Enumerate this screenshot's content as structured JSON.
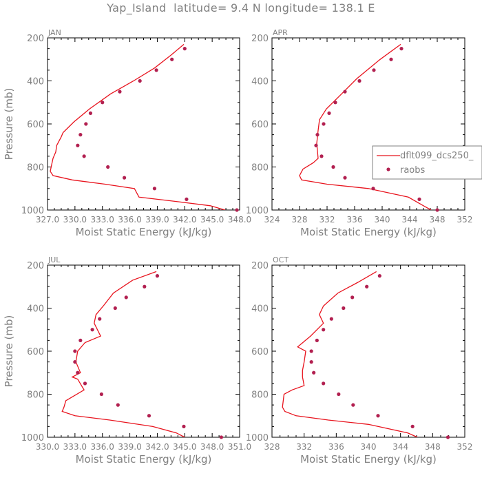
{
  "title": "Yap_Island  latitude= 9.4 N longitude= 138.1 E",
  "colors": {
    "model": "#e8141e",
    "obs": "#b22050",
    "text": "#808080",
    "axis": "#000000"
  },
  "legend": {
    "model_label": "dflt099_dcs250_",
    "obs_label": "raobs",
    "panel": "APR"
  },
  "chart_data": [
    {
      "type": "line",
      "panel": "JAN",
      "xlabel": "Moist Static Energy (kJ/kg)",
      "ylabel": "Pressure (mb)",
      "xlim": [
        327.0,
        348.0
      ],
      "ylim": [
        1000,
        200
      ],
      "yticks": [
        200,
        400,
        600,
        800,
        1000
      ],
      "xtick_labels": [
        "327.0",
        "330.0",
        "333.0",
        "336.0",
        "339.0",
        "342.0",
        "345.0",
        "348.0"
      ],
      "xtick_values": [
        327.0,
        330.0,
        333.0,
        336.0,
        339.0,
        342.0,
        345.0,
        348.0
      ],
      "series": [
        {
          "name": "dflt099_dcs250_",
          "kind": "line",
          "x": [
            341.9,
            340.5,
            338.7,
            336.4,
            333.9,
            331.6,
            329.9,
            328.7,
            328.5,
            328.0,
            327.9,
            327.6,
            327.4,
            327.3,
            327.6,
            329.7,
            333.3,
            336.5,
            337.0,
            341.0,
            344.8,
            346.4
          ],
          "y": [
            230,
            280,
            340,
            400,
            460,
            530,
            590,
            640,
            660,
            700,
            730,
            760,
            800,
            820,
            840,
            860,
            880,
            900,
            940,
            960,
            980,
            1000
          ]
        },
        {
          "name": "raobs",
          "kind": "scatter",
          "x": [
            342.0,
            340.6,
            338.9,
            337.1,
            334.9,
            333.0,
            331.7,
            331.2,
            330.6,
            330.3,
            331.0,
            333.6,
            335.4,
            338.7,
            342.2,
            347.7
          ],
          "y": [
            250,
            300,
            350,
            400,
            450,
            500,
            550,
            600,
            650,
            700,
            750,
            800,
            850,
            900,
            950,
            1000
          ]
        }
      ]
    },
    {
      "type": "line",
      "panel": "APR",
      "xlabel": "Moist Static Energy (kJ/kg)",
      "ylabel": "",
      "xlim": [
        324,
        352
      ],
      "ylim": [
        1000,
        200
      ],
      "yticks": [
        200,
        400,
        600,
        800,
        1000
      ],
      "xtick_labels": [
        "324",
        "328",
        "332",
        "336",
        "340",
        "344",
        "348",
        "352"
      ],
      "xtick_values": [
        324,
        328,
        332,
        336,
        340,
        344,
        348,
        352
      ],
      "series": [
        {
          "name": "dflt099_dcs250_",
          "kind": "line",
          "x": [
            342.7,
            339.7,
            336.3,
            333.8,
            331.9,
            330.9,
            330.7,
            330.5,
            330.7,
            330.0,
            328.5,
            328.0,
            328.3,
            332.0,
            338.0,
            343.8,
            346.0,
            347.1
          ],
          "y": [
            230,
            300,
            390,
            470,
            530,
            580,
            630,
            690,
            760,
            780,
            810,
            840,
            860,
            880,
            900,
            940,
            980,
            1000
          ]
        },
        {
          "name": "raobs",
          "kind": "scatter",
          "x": [
            342.8,
            341.3,
            338.8,
            336.7,
            334.6,
            333.2,
            332.3,
            331.5,
            330.6,
            330.4,
            331.2,
            332.9,
            334.6,
            338.7,
            345.4,
            348.0
          ],
          "y": [
            250,
            300,
            350,
            400,
            450,
            500,
            550,
            600,
            650,
            700,
            750,
            800,
            850,
            900,
            950,
            1000
          ]
        }
      ]
    },
    {
      "type": "line",
      "panel": "JUL",
      "xlabel": "Moist Static Energy (kJ/kg)",
      "ylabel": "Pressure (mb)",
      "xlim": [
        330.0,
        351.0
      ],
      "ylim": [
        1000,
        200
      ],
      "yticks": [
        200,
        400,
        600,
        800,
        1000
      ],
      "xtick_labels": [
        "330.0",
        "333.0",
        "336.0",
        "339.0",
        "342.0",
        "345.0",
        "348.0",
        "351.0"
      ],
      "xtick_values": [
        330.0,
        333.0,
        336.0,
        339.0,
        342.0,
        345.0,
        348.0,
        351.0
      ],
      "series": [
        {
          "name": "dflt099_dcs250_",
          "kind": "line",
          "x": [
            341.9,
            339.3,
            337.2,
            336.1,
            335.3,
            335.1,
            335.8,
            334.1,
            333.3,
            333.1,
            333.6,
            332.7,
            333.3,
            334.0,
            332.0,
            331.8,
            331.6,
            333.0,
            336.8,
            341.5,
            344.1,
            345.0
          ],
          "y": [
            230,
            270,
            330,
            390,
            430,
            470,
            530,
            560,
            600,
            650,
            700,
            720,
            730,
            780,
            830,
            860,
            880,
            900,
            920,
            950,
            980,
            1000
          ]
        },
        {
          "name": "raobs",
          "kind": "scatter",
          "x": [
            342.0,
            340.6,
            338.6,
            337.4,
            335.7,
            334.9,
            333.6,
            333.0,
            333.0,
            333.3,
            334.1,
            335.9,
            337.7,
            341.1,
            344.9,
            349.0
          ],
          "y": [
            250,
            300,
            350,
            400,
            450,
            500,
            550,
            600,
            650,
            700,
            750,
            800,
            850,
            900,
            950,
            1000
          ]
        }
      ]
    },
    {
      "type": "line",
      "panel": "OCT",
      "xlabel": "Moist Static Energy (kJ/kg)",
      "ylabel": "",
      "xlim": [
        328,
        352
      ],
      "ylim": [
        1000,
        200
      ],
      "yticks": [
        200,
        400,
        600,
        800,
        1000
      ],
      "xtick_labels": [
        "328",
        "332",
        "336",
        "340",
        "344",
        "348",
        "352"
      ],
      "xtick_values": [
        328,
        332,
        336,
        340,
        344,
        348,
        352
      ],
      "series": [
        {
          "name": "dflt099_dcs250_",
          "kind": "line",
          "x": [
            341.0,
            338.7,
            336.2,
            334.4,
            333.9,
            334.4,
            332.8,
            331.2,
            332.2,
            332.0,
            331.8,
            331.8,
            332.0,
            330.5,
            329.5,
            329.3,
            329.6,
            331.0,
            335.0,
            340.0,
            344.9,
            346.1
          ],
          "y": [
            230,
            280,
            330,
            390,
            430,
            470,
            530,
            580,
            600,
            650,
            690,
            720,
            760,
            780,
            800,
            860,
            880,
            900,
            920,
            940,
            980,
            1000
          ]
        },
        {
          "name": "raobs",
          "kind": "scatter",
          "x": [
            341.4,
            339.8,
            338.0,
            336.9,
            335.4,
            334.4,
            333.6,
            332.9,
            332.9,
            333.2,
            334.4,
            336.3,
            338.1,
            341.2,
            345.5,
            349.9
          ],
          "y": [
            250,
            300,
            350,
            400,
            450,
            500,
            550,
            600,
            650,
            700,
            750,
            800,
            850,
            900,
            950,
            1000
          ]
        }
      ]
    }
  ]
}
